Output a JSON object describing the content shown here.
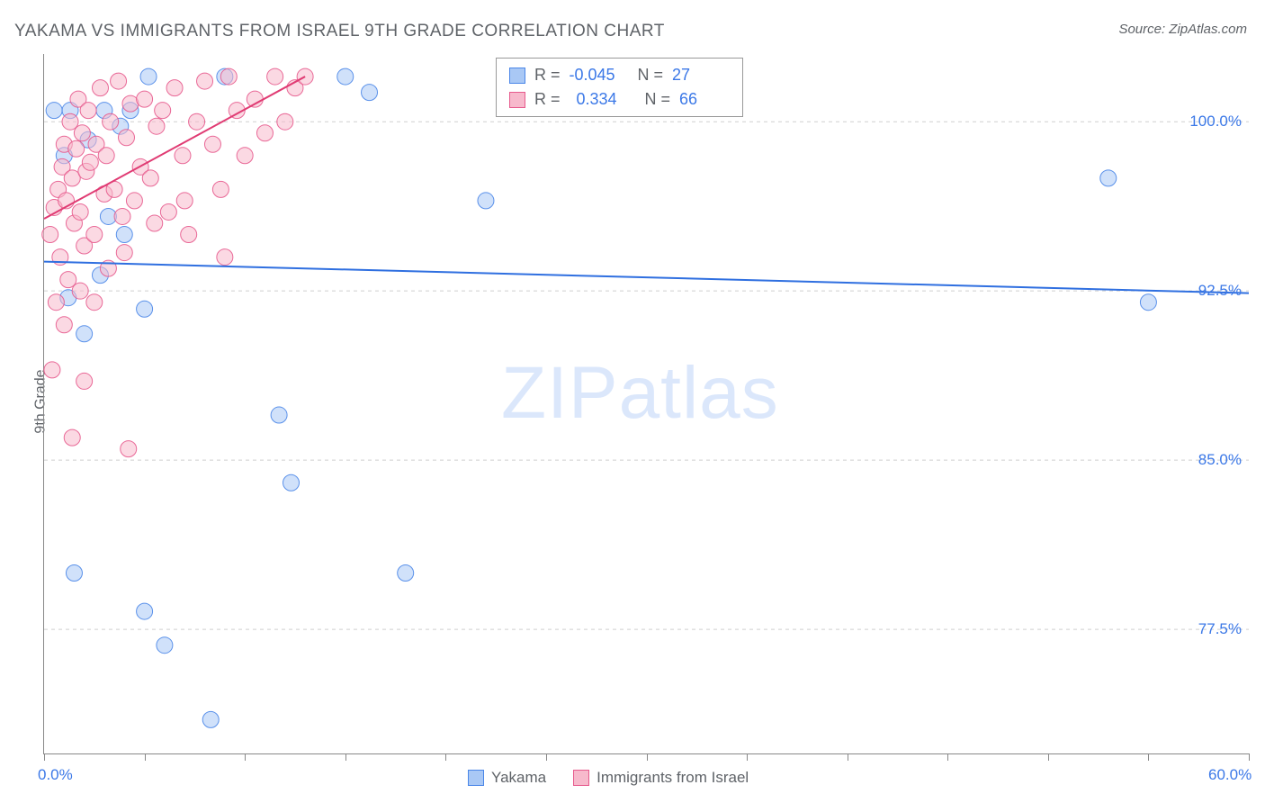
{
  "title": "YAKAMA VS IMMIGRANTS FROM ISRAEL 9TH GRADE CORRELATION CHART",
  "source_label": "Source: ZipAtlas.com",
  "ylabel": "9th Grade",
  "watermark_zip": "ZIP",
  "watermark_atlas": "atlas",
  "chart": {
    "type": "scatter",
    "background_color": "#ffffff",
    "grid_color": "#cfcfcf",
    "axis_color": "#888888",
    "text_color": "#5f6368",
    "value_color": "#3b78e7",
    "xlim": [
      0,
      60
    ],
    "ylim": [
      72,
      103
    ],
    "x_ticks": [
      0,
      5,
      10,
      15,
      20,
      25,
      30,
      35,
      40,
      45,
      50,
      55,
      60
    ],
    "x_tick_labels": {
      "0": "0.0%",
      "60": "60.0%"
    },
    "y_gridlines": [
      77.5,
      85.0,
      92.5,
      100.0
    ],
    "y_tick_labels": [
      "77.5%",
      "85.0%",
      "92.5%",
      "100.0%"
    ],
    "marker_radius": 9,
    "marker_opacity": 0.55,
    "marker_stroke_opacity": 0.9,
    "trend_line_width": 2,
    "series": [
      {
        "key": "yakama",
        "label": "Yakama",
        "fill": "#a9c8f5",
        "stroke": "#4a86e8",
        "r_value": "-0.045",
        "n_value": "27",
        "trend": {
          "x1": 0,
          "y1": 93.8,
          "x2": 60,
          "y2": 92.4,
          "color": "#2f6fe0"
        },
        "points": [
          [
            0.5,
            100.5
          ],
          [
            1.3,
            100.5
          ],
          [
            3.0,
            100.5
          ],
          [
            4.3,
            100.5
          ],
          [
            5.2,
            102.0
          ],
          [
            9.0,
            102.0
          ],
          [
            15.0,
            102.0
          ],
          [
            1.0,
            98.5
          ],
          [
            2.2,
            99.2
          ],
          [
            3.8,
            99.8
          ],
          [
            4.0,
            95.0
          ],
          [
            2.8,
            93.2
          ],
          [
            5.0,
            91.7
          ],
          [
            22.0,
            96.5
          ],
          [
            53.0,
            97.5
          ],
          [
            55.0,
            92.0
          ],
          [
            1.2,
            92.2
          ],
          [
            1.5,
            80.0
          ],
          [
            18.0,
            80.0
          ],
          [
            6.0,
            76.8
          ],
          [
            8.3,
            73.5
          ],
          [
            5.0,
            78.3
          ],
          [
            11.7,
            87.0
          ],
          [
            12.3,
            84.0
          ],
          [
            16.2,
            101.3
          ],
          [
            3.2,
            95.8
          ],
          [
            2.0,
            90.6
          ]
        ]
      },
      {
        "key": "israel",
        "label": "Immigrants from Israel",
        "fill": "#f7b9cc",
        "stroke": "#e75a8d",
        "r_value": "0.334",
        "n_value": "66",
        "trend": {
          "x1": 0,
          "y1": 95.7,
          "x2": 13,
          "y2": 102.0,
          "color": "#e03b73"
        },
        "points": [
          [
            0.3,
            95.0
          ],
          [
            0.5,
            96.2
          ],
          [
            0.7,
            97.0
          ],
          [
            0.8,
            94.0
          ],
          [
            0.9,
            98.0
          ],
          [
            1.0,
            99.0
          ],
          [
            1.1,
            96.5
          ],
          [
            1.2,
            93.0
          ],
          [
            1.3,
            100.0
          ],
          [
            1.4,
            97.5
          ],
          [
            1.5,
            95.5
          ],
          [
            1.6,
            98.8
          ],
          [
            1.7,
            101.0
          ],
          [
            1.8,
            96.0
          ],
          [
            1.9,
            99.5
          ],
          [
            2.0,
            94.5
          ],
          [
            2.1,
            97.8
          ],
          [
            2.2,
            100.5
          ],
          [
            2.3,
            98.2
          ],
          [
            2.5,
            95.0
          ],
          [
            2.6,
            99.0
          ],
          [
            2.8,
            101.5
          ],
          [
            3.0,
            96.8
          ],
          [
            3.1,
            98.5
          ],
          [
            3.3,
            100.0
          ],
          [
            3.5,
            97.0
          ],
          [
            3.7,
            101.8
          ],
          [
            3.9,
            95.8
          ],
          [
            4.1,
            99.3
          ],
          [
            4.3,
            100.8
          ],
          [
            4.5,
            96.5
          ],
          [
            4.8,
            98.0
          ],
          [
            5.0,
            101.0
          ],
          [
            5.3,
            97.5
          ],
          [
            5.6,
            99.8
          ],
          [
            5.9,
            100.5
          ],
          [
            6.2,
            96.0
          ],
          [
            6.5,
            101.5
          ],
          [
            6.9,
            98.5
          ],
          [
            7.2,
            95.0
          ],
          [
            7.6,
            100.0
          ],
          [
            8.0,
            101.8
          ],
          [
            8.4,
            99.0
          ],
          [
            8.8,
            97.0
          ],
          [
            9.2,
            102.0
          ],
          [
            9.6,
            100.5
          ],
          [
            10.0,
            98.5
          ],
          [
            10.5,
            101.0
          ],
          [
            11.0,
            99.5
          ],
          [
            11.5,
            102.0
          ],
          [
            12.0,
            100.0
          ],
          [
            12.5,
            101.5
          ],
          [
            13.0,
            102.0
          ],
          [
            0.6,
            92.0
          ],
          [
            1.0,
            91.0
          ],
          [
            1.4,
            86.0
          ],
          [
            4.2,
            85.5
          ],
          [
            9.0,
            94.0
          ],
          [
            1.8,
            92.5
          ],
          [
            2.5,
            92.0
          ],
          [
            3.2,
            93.5
          ],
          [
            4.0,
            94.2
          ],
          [
            5.5,
            95.5
          ],
          [
            7.0,
            96.5
          ],
          [
            2.0,
            88.5
          ],
          [
            0.4,
            89.0
          ]
        ]
      }
    ]
  },
  "legend_bottom": {
    "items": [
      "Yakama",
      "Immigrants from Israel"
    ]
  },
  "stats_box": {
    "r_label": "R =",
    "n_label": "N ="
  }
}
